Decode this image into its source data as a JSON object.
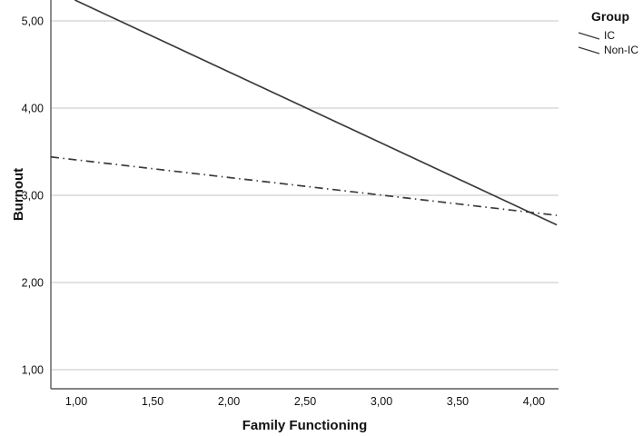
{
  "chart_data": {
    "type": "line",
    "title": "",
    "xlabel": "Family Functioning",
    "ylabel": "Burnout",
    "xlim": [
      0.833,
      4.161
    ],
    "ylim": [
      0.781,
      5.24
    ],
    "grid": "horizontal-only",
    "x_ticks": [
      {
        "value": 1.0,
        "label": "1,00"
      },
      {
        "value": 1.5,
        "label": "1,50"
      },
      {
        "value": 2.0,
        "label": "2,00"
      },
      {
        "value": 2.5,
        "label": "2,50"
      },
      {
        "value": 3.0,
        "label": "3,00"
      },
      {
        "value": 3.5,
        "label": "3,50"
      },
      {
        "value": 4.0,
        "label": "4,00"
      }
    ],
    "y_ticks": [
      {
        "value": 1.0,
        "label": "1,00"
      },
      {
        "value": 2.0,
        "label": "2,00"
      },
      {
        "value": 3.0,
        "label": "3,00"
      },
      {
        "value": 4.0,
        "label": "4,00"
      },
      {
        "value": 5.0,
        "label": "5,00"
      }
    ],
    "legend": {
      "title": "Group",
      "position": "top-right"
    },
    "series": [
      {
        "name": "IC",
        "line_style": "solid",
        "color": "#3b3b3b",
        "points": [
          [
            0.99,
            5.24
          ],
          [
            4.15,
            2.66
          ]
        ]
      },
      {
        "name": "Non-IC",
        "line_style": "dash-dot",
        "color": "#3b3b3b",
        "points": [
          [
            0.833,
            3.44
          ],
          [
            4.15,
            2.77
          ]
        ]
      }
    ]
  },
  "styles": {
    "background": "#ffffff",
    "grid_color": "#c6c6c6",
    "axis_color": "#5a5a5a",
    "line_color": "#3b3b3b",
    "text_color": "#111111"
  }
}
